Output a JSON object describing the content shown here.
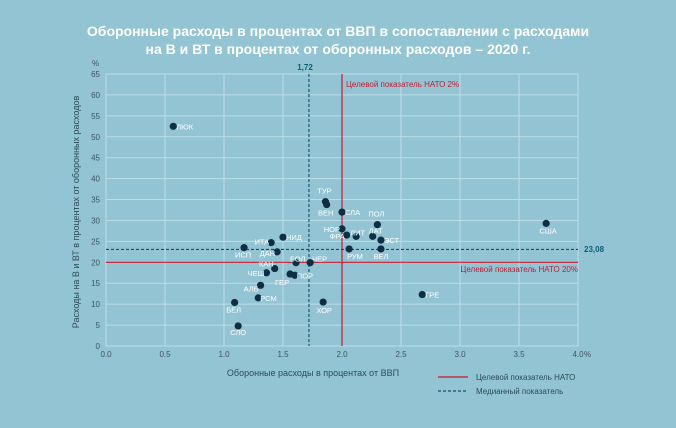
{
  "title_line1": "Оборонные расходы в процентах от ВВП в сопоставлении с расходами",
  "title_line2": "на В и ВТ в процентах от оборонных расходов – 2020 г.",
  "chart_data": {
    "type": "scatter",
    "xlabel": "Оборонные расходы в процентах от ВВП",
    "ylabel": "Расходы на В и ВТ в процентах от оборонных расходов",
    "x_unit": "%",
    "y_unit": "%",
    "xlim": [
      0,
      4.0
    ],
    "ylim": [
      0,
      65
    ],
    "x_ticks": [
      "0.0",
      "0.5",
      "1.0",
      "1.5",
      "2.0",
      "2.5",
      "3.0",
      "3.5",
      "4.0"
    ],
    "y_ticks": [
      "0",
      "5",
      "10",
      "15",
      "20",
      "25",
      "30",
      "35",
      "40",
      "45",
      "50",
      "55",
      "60",
      "65"
    ],
    "points": [
      {
        "label": "ЛЮК",
        "x": 0.57,
        "y": 52.5
      },
      {
        "label": "ТУР",
        "x": 1.86,
        "y": 34.5
      },
      {
        "label": "ВЕН",
        "x": 1.87,
        "y": 33.8
      },
      {
        "label": "СЛА",
        "x": 2.0,
        "y": 32.0
      },
      {
        "label": "ПОЛ",
        "x": 2.3,
        "y": 29.0
      },
      {
        "label": "США",
        "x": 3.73,
        "y": 29.3
      },
      {
        "label": "НОР",
        "x": 2.0,
        "y": 28.0
      },
      {
        "label": "ФРА",
        "x": 2.04,
        "y": 26.5
      },
      {
        "label": "ЛИТ",
        "x": 2.12,
        "y": 26.2
      },
      {
        "label": "ЛАТ",
        "x": 2.26,
        "y": 26.2
      },
      {
        "label": "ЭСТ",
        "x": 2.33,
        "y": 25.3
      },
      {
        "label": "НИД",
        "x": 1.5,
        "y": 26.0
      },
      {
        "label": "ИТА",
        "x": 1.4,
        "y": 24.7
      },
      {
        "label": "ИСП",
        "x": 1.17,
        "y": 23.5
      },
      {
        "label": "ДАН",
        "x": 1.45,
        "y": 22.5
      },
      {
        "label": "РУМ",
        "x": 2.06,
        "y": 23.2
      },
      {
        "label": "ВЕЛ",
        "x": 2.33,
        "y": 23.2
      },
      {
        "label": "БОЛ",
        "x": 1.61,
        "y": 19.9
      },
      {
        "label": "ЧЕР",
        "x": 1.73,
        "y": 19.9
      },
      {
        "label": "КАН",
        "x": 1.43,
        "y": 18.5
      },
      {
        "label": "ЧЕШ",
        "x": 1.36,
        "y": 17.5
      },
      {
        "label": "ГЕР",
        "x": 1.56,
        "y": 17.2
      },
      {
        "label": "ПОР",
        "x": 1.6,
        "y": 16.9
      },
      {
        "label": "АЛБ",
        "x": 1.31,
        "y": 14.5
      },
      {
        "label": "ГРЕ",
        "x": 2.68,
        "y": 12.3
      },
      {
        "label": "РСМ",
        "x": 1.29,
        "y": 11.5
      },
      {
        "label": "БЕЛ",
        "x": 1.09,
        "y": 10.4
      },
      {
        "label": "ХОР",
        "x": 1.84,
        "y": 10.5
      },
      {
        "label": "СЛО",
        "x": 1.12,
        "y": 4.8
      }
    ],
    "reference_lines": {
      "nato_x": 2.0,
      "nato_y": 20.0,
      "median_x": 1.72,
      "median_y": 23.08,
      "nato_color": "#c8192e",
      "median_color": "#0e4f6b"
    },
    "annotations": {
      "median_x_label": "1,72",
      "median_y_label": "23,08",
      "nato_x_label": "Целевой показатель НАТО 2%",
      "nato_y_label": "Целевой показатель НАТО 20%"
    },
    "legend": {
      "nato": "Целевой показатель НАТО",
      "median": "Медианный показатель"
    },
    "marker_color": "#0d2f43",
    "grid": true
  }
}
